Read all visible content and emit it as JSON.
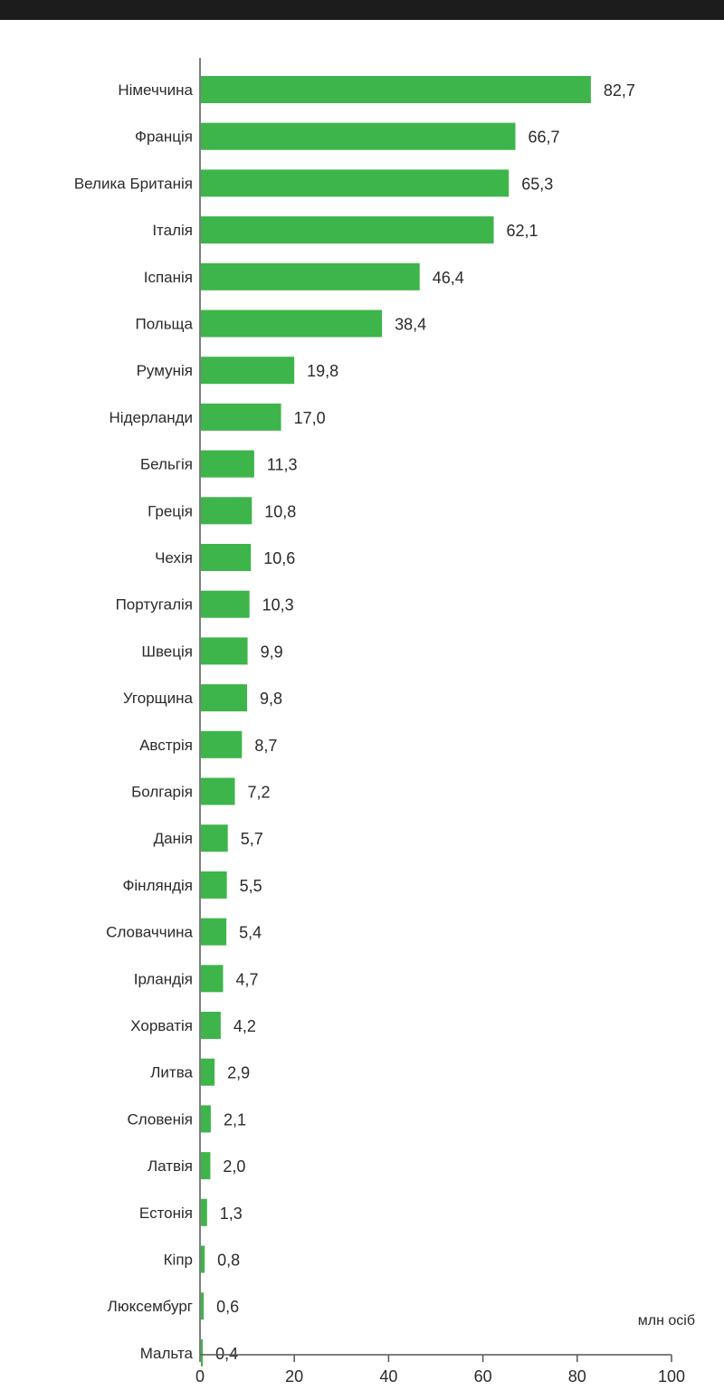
{
  "chart_data": {
    "type": "bar",
    "orientation": "horizontal",
    "categories": [
      "Німеччина",
      "Франція",
      "Велика Британія",
      "Італія",
      "Іспанія",
      "Польща",
      "Румунія",
      "Нідерланди",
      "Бельгія",
      "Греція",
      "Чехія",
      "Португалія",
      "Швеція",
      "Угорщина",
      "Австрія",
      "Болгарія",
      "Данія",
      "Фінляндія",
      "Словаччина",
      "Ірландія",
      "Хорватія",
      "Литва",
      "Словенія",
      "Латвія",
      "Естонія",
      "Кіпр",
      "Люксембург",
      "Мальта"
    ],
    "values": [
      82.7,
      66.7,
      65.3,
      62.1,
      46.4,
      38.4,
      19.8,
      17.0,
      11.3,
      10.8,
      10.6,
      10.3,
      9.9,
      9.8,
      8.7,
      7.2,
      5.7,
      5.5,
      5.4,
      4.7,
      4.2,
      2.9,
      2.1,
      2.0,
      1.3,
      0.8,
      0.6,
      0.4
    ],
    "value_labels": [
      "82,7",
      "66,7",
      "65,3",
      "62,1",
      "46,4",
      "38,4",
      "19,8",
      "17,0",
      "11,3",
      "10,8",
      "10,6",
      "10,3",
      "9,9",
      "9,8",
      "8,7",
      "7,2",
      "5,7",
      "5,5",
      "5,4",
      "4,7",
      "4,2",
      "2,9",
      "2,1",
      "2,0",
      "1,3",
      "0,8",
      "0,6",
      "0,4"
    ],
    "xticks": [
      0,
      20,
      40,
      60,
      80,
      100
    ],
    "xlim": [
      0,
      100
    ],
    "unit_label": "млн осіб",
    "bar_color": "#3db54a",
    "grid": false,
    "legend": "none"
  }
}
